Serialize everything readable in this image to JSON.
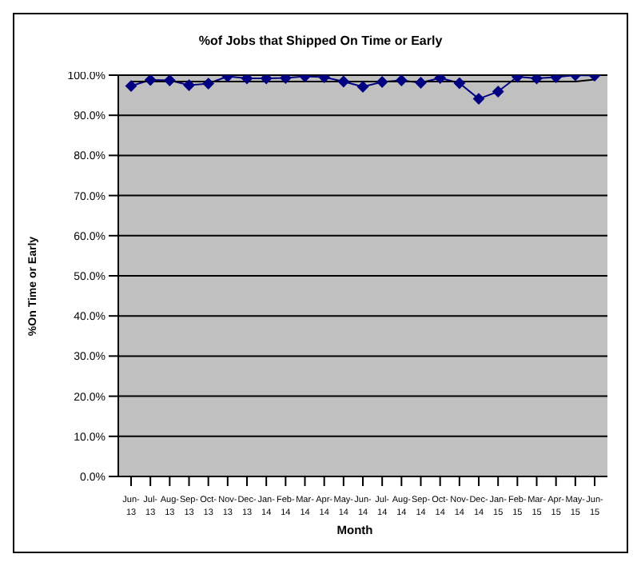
{
  "chart_data": {
    "type": "line",
    "title": "%of Jobs that Shipped On Time or Early",
    "xlabel": "Month",
    "ylabel": "%On Time or Early",
    "categories": [
      "Jun-13",
      "Jul-13",
      "Aug-13",
      "Sep-13",
      "Oct-13",
      "Nov-13",
      "Dec-13",
      "Jan-14",
      "Feb-14",
      "Mar-14",
      "Apr-14",
      "May-14",
      "Jun-14",
      "Jul-14",
      "Aug-14",
      "Sep-14",
      "Oct-14",
      "Nov-14",
      "Dec-14",
      "Jan-15",
      "Feb-15",
      "Mar-15",
      "Apr-15",
      "May-15",
      "Jun-15"
    ],
    "series": [
      {
        "color": "#000080",
        "marker": "diamond",
        "values": [
          97.3,
          98.8,
          98.7,
          97.5,
          97.9,
          99.7,
          99.2,
          99.2,
          99.3,
          99.7,
          99.5,
          98.4,
          97.1,
          98.3,
          98.7,
          98.1,
          99.3,
          98.0,
          94.1,
          95.9,
          99.6,
          99.2,
          99.5,
          100,
          99.9
        ]
      },
      {
        "color": "#000000",
        "marker": "none",
        "values": [
          98.4,
          98.4,
          98.4,
          98.4,
          98.4,
          98.4,
          98.4,
          98.4,
          98.4,
          98.4,
          98.4,
          98.4,
          98.4,
          98.4,
          98.4,
          98.4,
          98.4,
          98.4,
          98.4,
          98.4,
          98.4,
          98.4,
          98.4,
          98.4,
          98.9
        ]
      }
    ],
    "ylim": [
      0,
      100
    ],
    "yticks": [
      {
        "value": 0,
        "label": "0.0%"
      },
      {
        "value": 10,
        "label": "10.0%"
      },
      {
        "value": 20,
        "label": "20.0%"
      },
      {
        "value": 30,
        "label": "30.0%"
      },
      {
        "value": 40,
        "label": "40.0%"
      },
      {
        "value": 50,
        "label": "50.0%"
      },
      {
        "value": 60,
        "label": "60.0%"
      },
      {
        "value": 70,
        "label": "70.0%"
      },
      {
        "value": 80,
        "label": "80.0%"
      },
      {
        "value": 90,
        "label": "90.0%"
      },
      {
        "value": 100,
        "label": "100.0%"
      }
    ],
    "grid": "y"
  }
}
